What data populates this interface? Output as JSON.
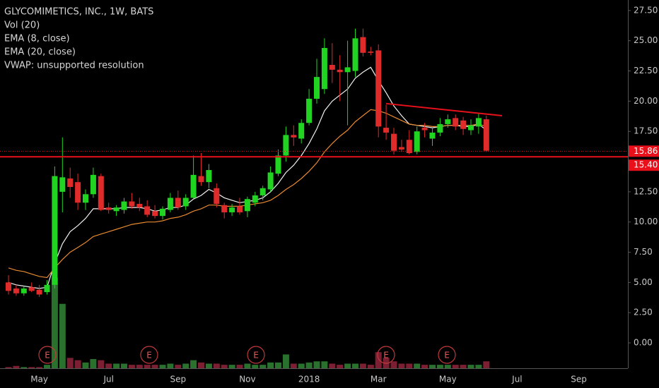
{
  "chart_data": {
    "type": "candlestick",
    "title": "GLYCOMIMETICS, INC., 1W, BATS",
    "indicator_labels": [
      "Vol (20)",
      "EMA (8, close)",
      "EMA (20, close)",
      "VWAP: unsupported resolution"
    ],
    "categories": [
      null,
      null,
      null,
      null,
      "May",
      null,
      null,
      null,
      null,
      null,
      null,
      null,
      null,
      "Jul",
      null,
      null,
      null,
      null,
      null,
      null,
      null,
      null,
      "Sep",
      null,
      null,
      null,
      null,
      null,
      null,
      null,
      null,
      "Nov",
      null,
      null,
      null,
      null,
      null,
      null,
      null,
      "2018",
      null,
      null,
      null,
      null,
      null,
      null,
      null,
      null,
      "Mar",
      null,
      null,
      null,
      null,
      null,
      null,
      null,
      null,
      "May",
      null,
      null,
      null,
      null,
      null,
      null,
      null,
      null,
      "Jul",
      null,
      null,
      null,
      null,
      null,
      null,
      null,
      "Sep",
      null,
      null,
      null,
      null,
      null
    ],
    "open": [
      5.0,
      4.5,
      4.1,
      4.6,
      4.4,
      4.2,
      4.8,
      12.5,
      13.6,
      13.3,
      11.6,
      12.3,
      13.8,
      11.2,
      10.9,
      11.0,
      11.7,
      11.5,
      11.3,
      10.9,
      10.5,
      11.0,
      12.0,
      11.3,
      12.0,
      13.8,
      13.3,
      12.8,
      11.4,
      10.8,
      11.3,
      10.9,
      11.6,
      12.2,
      12.7,
      14.0,
      15.5,
      17.2,
      16.9,
      18.2,
      20.2,
      21.0,
      23.0,
      22.6,
      22.4,
      22.5,
      25.3,
      24.1,
      24.2,
      17.8,
      17.3,
      16.2,
      16.8,
      15.8,
      17.8,
      16.9,
      17.4,
      18.1,
      18.6,
      18.4,
      17.6,
      17.9,
      18.5,
      null,
      null,
      null,
      null,
      null,
      null,
      null,
      null,
      null,
      null,
      null,
      null,
      null,
      null,
      null,
      null,
      null
    ],
    "high": [
      5.6,
      4.8,
      4.7,
      5.0,
      4.8,
      5.2,
      14.6,
      17.0,
      14.5,
      14.0,
      12.7,
      14.5,
      14.0,
      11.6,
      11.4,
      12.0,
      12.4,
      12.0,
      11.8,
      11.4,
      11.3,
      12.4,
      12.6,
      12.3,
      15.5,
      15.7,
      14.8,
      13.2,
      11.6,
      11.5,
      12.0,
      12.1,
      12.5,
      13.0,
      14.6,
      16.0,
      17.9,
      18.0,
      18.5,
      21.0,
      23.5,
      25.2,
      24.8,
      23.8,
      25.0,
      26.0,
      26.0,
      24.5,
      24.7,
      19.7,
      17.8,
      16.8,
      17.6,
      17.9,
      18.2,
      17.9,
      18.6,
      18.9,
      18.9,
      18.7,
      18.5,
      19.0,
      18.8,
      null,
      null,
      null,
      null,
      null,
      null,
      null,
      null,
      null,
      null,
      null,
      null,
      null,
      null,
      null,
      null,
      null
    ],
    "low": [
      4.0,
      3.9,
      3.9,
      4.2,
      3.8,
      4.0,
      4.5,
      10.8,
      12.0,
      11.0,
      11.0,
      12.0,
      10.9,
      10.7,
      10.5,
      10.7,
      11.1,
      10.9,
      10.4,
      10.3,
      10.2,
      10.8,
      11.0,
      11.0,
      11.9,
      13.0,
      12.8,
      11.2,
      10.3,
      10.5,
      10.6,
      10.4,
      11.3,
      11.8,
      12.5,
      13.8,
      15.0,
      16.3,
      16.5,
      18.0,
      19.8,
      20.6,
      21.5,
      20.0,
      18.0,
      22.0,
      23.7,
      23.8,
      17.0,
      16.8,
      15.6,
      15.8,
      15.6,
      15.6,
      17.0,
      16.3,
      17.1,
      17.8,
      17.6,
      17.2,
      17.2,
      17.3,
      15.8,
      null,
      null,
      null,
      null,
      null,
      null,
      null,
      null,
      null,
      null,
      null,
      null,
      null,
      null,
      null,
      null,
      null
    ],
    "close": [
      4.3,
      4.1,
      4.5,
      4.3,
      4.0,
      4.8,
      13.8,
      13.7,
      12.9,
      11.6,
      12.3,
      13.9,
      11.0,
      11.0,
      11.2,
      11.7,
      11.3,
      11.2,
      10.6,
      10.5,
      11.1,
      12.0,
      11.2,
      12.0,
      13.9,
      13.3,
      14.3,
      11.5,
      10.8,
      11.2,
      10.8,
      11.9,
      12.2,
      12.8,
      14.1,
      15.5,
      17.2,
      17.0,
      18.2,
      20.2,
      22.0,
      24.4,
      22.6,
      22.4,
      22.8,
      25.2,
      24.0,
      24.0,
      17.9,
      17.4,
      15.9,
      16.0,
      15.7,
      17.5,
      17.6,
      17.4,
      18.1,
      18.5,
      17.9,
      17.7,
      18.0,
      18.6,
      15.9,
      null,
      null,
      null,
      null,
      null,
      null,
      null,
      null,
      null,
      null,
      null,
      null,
      null,
      null,
      null,
      null,
      null
    ],
    "volume": [
      0.1,
      0.2,
      0.1,
      0.1,
      0.1,
      0.3,
      7.9,
      5.6,
      0.9,
      0.7,
      0.5,
      0.8,
      0.7,
      0.4,
      0.4,
      0.4,
      0.3,
      0.3,
      0.3,
      0.3,
      0.3,
      0.4,
      0.3,
      0.4,
      0.7,
      0.5,
      0.4,
      0.4,
      0.3,
      0.3,
      0.3,
      0.4,
      0.3,
      0.3,
      0.5,
      0.5,
      1.2,
      0.4,
      0.4,
      0.5,
      0.6,
      0.6,
      0.4,
      0.3,
      0.4,
      0.4,
      0.4,
      0.3,
      1.4,
      0.9,
      0.6,
      0.4,
      0.4,
      0.4,
      0.3,
      0.3,
      0.3,
      0.3,
      0.3,
      0.3,
      0.3,
      0.3,
      0.6,
      null,
      null,
      null,
      null,
      null,
      null,
      null,
      null,
      null,
      null,
      null,
      null,
      null,
      null,
      null,
      null,
      null
    ],
    "up_color": "#22d422",
    "down_color": "#e02b2b",
    "volume_up_color": "#2e7d32",
    "volume_down_color": "#8b2238",
    "series": [
      {
        "name": "EMA (8, close)",
        "color": "#f0f0f0",
        "values": [
          5.0,
          4.8,
          4.7,
          4.6,
          4.5,
          4.6,
          6.6,
          8.2,
          9.2,
          9.7,
          10.3,
          11.1,
          11.1,
          11.1,
          11.1,
          11.2,
          11.2,
          11.2,
          11.1,
          10.9,
          11.0,
          11.2,
          11.2,
          11.4,
          11.9,
          12.2,
          12.7,
          12.4,
          12.0,
          11.8,
          11.6,
          11.7,
          11.8,
          12.0,
          12.5,
          13.2,
          14.1,
          14.7,
          15.5,
          16.5,
          17.7,
          19.2,
          20.0,
          20.5,
          21.0,
          21.9,
          22.4,
          22.8,
          21.7,
          20.7,
          19.6,
          18.8,
          18.1,
          18.0,
          17.9,
          17.8,
          17.9,
          18.0,
          18.0,
          17.9,
          17.9,
          18.1,
          17.6,
          null,
          null,
          null,
          null,
          null,
          null,
          null,
          null,
          null,
          null,
          null,
          null,
          null,
          null,
          null,
          null,
          null
        ]
      },
      {
        "name": "EMA (20, close)",
        "color": "#e8892f",
        "values": [
          6.2,
          6.0,
          5.9,
          5.7,
          5.5,
          5.4,
          6.2,
          6.9,
          7.5,
          7.9,
          8.3,
          8.8,
          9.0,
          9.2,
          9.4,
          9.6,
          9.8,
          9.9,
          10.0,
          10.0,
          10.1,
          10.3,
          10.4,
          10.6,
          10.9,
          11.1,
          11.4,
          11.4,
          11.3,
          11.3,
          11.3,
          11.4,
          11.5,
          11.6,
          11.8,
          12.2,
          12.7,
          13.1,
          13.6,
          14.2,
          14.9,
          15.8,
          16.5,
          17.1,
          17.6,
          18.3,
          18.8,
          19.3,
          19.2,
          19.0,
          18.7,
          18.4,
          18.1,
          18.0,
          18.0,
          17.9,
          17.9,
          18.0,
          18.0,
          18.0,
          18.0,
          18.1,
          17.9,
          null,
          null,
          null,
          null,
          null,
          null,
          null,
          null,
          null,
          null,
          null,
          null,
          null,
          null,
          null,
          null,
          null
        ]
      }
    ],
    "price_lines": [
      {
        "value": 15.86,
        "label": "15.86",
        "style": "dotted"
      },
      {
        "value": 15.4,
        "label": "15.40",
        "style": "solid"
      }
    ],
    "price_line_color": "#e8101a",
    "trendline_values": [
      19.8,
      18.8
    ],
    "earnings_labels": [
      "E",
      "E",
      "E",
      "E",
      "E"
    ],
    "ylim": [
      -2.1,
      28.37
    ],
    "yticks": [
      {
        "value": 0,
        "label": "0.00"
      },
      {
        "value": 2.5,
        "label": "2.50"
      },
      {
        "value": 5,
        "label": "5.00"
      },
      {
        "value": 7.5,
        "label": "7.50"
      },
      {
        "value": 10,
        "label": "10.00"
      },
      {
        "value": 12.5,
        "label": "12.50"
      },
      {
        "value": 17.5,
        "label": "17.50"
      },
      {
        "value": 20,
        "label": "20.00"
      },
      {
        "value": 22.5,
        "label": "22.50"
      },
      {
        "value": 25,
        "label": "25.00"
      },
      {
        "value": 27.5,
        "label": "27.50"
      }
    ]
  }
}
